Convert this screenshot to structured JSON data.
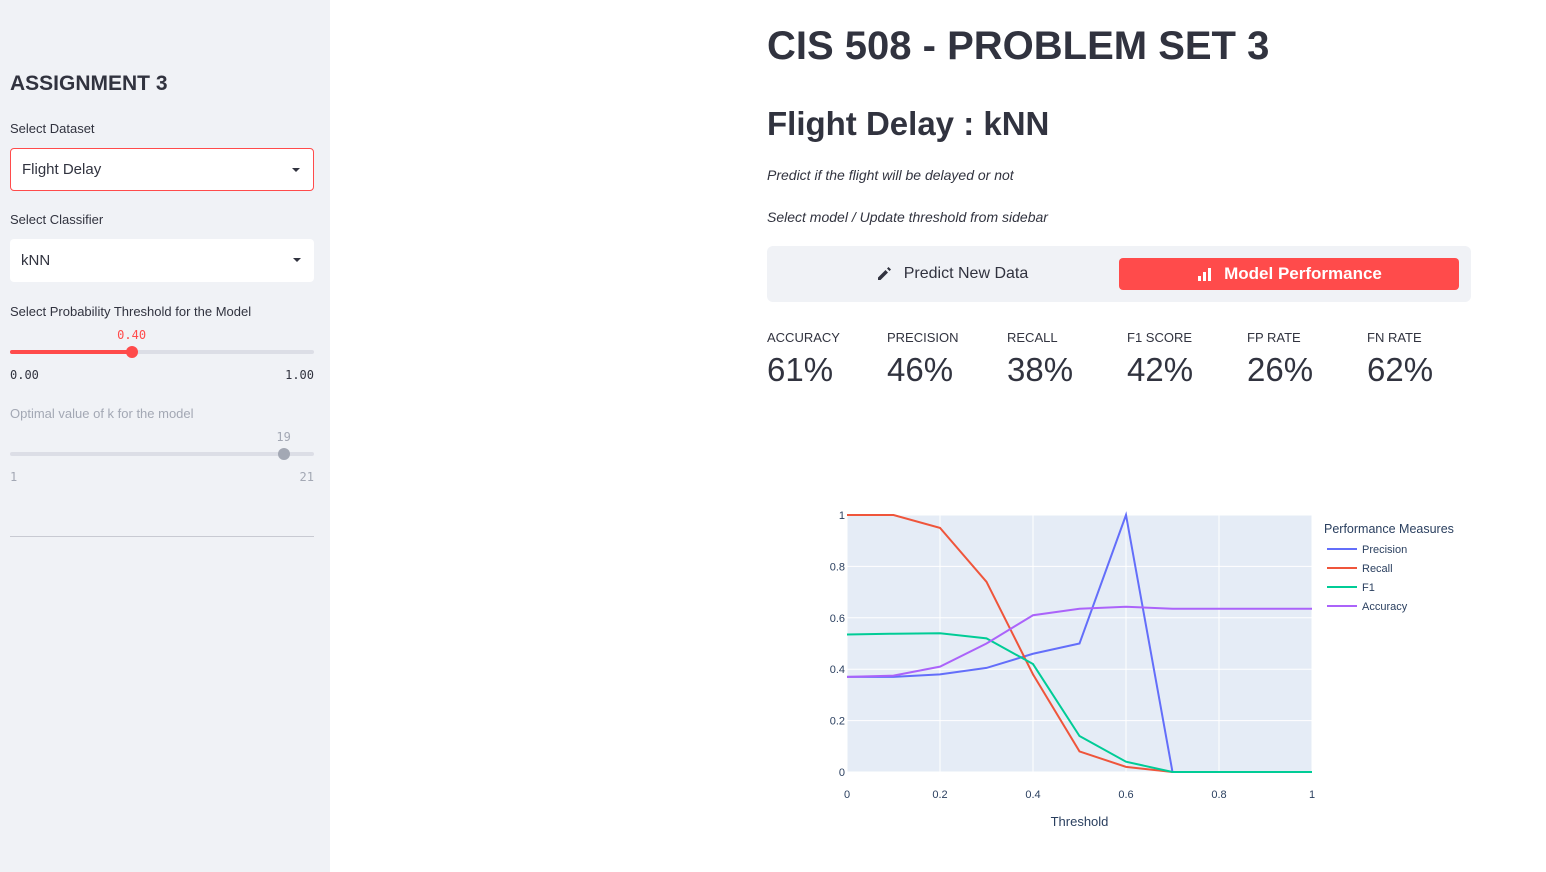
{
  "sidebar": {
    "heading": "ASSIGNMENT 3",
    "dataset_label": "Select Dataset",
    "dataset_value": "Flight Delay",
    "classifier_label": "Select Classifier",
    "classifier_value": "kNN",
    "threshold_label": "Select Probability Threshold for the Model",
    "threshold_value": 0.4,
    "threshold_value_text": "0.40",
    "threshold_min": "0.00",
    "threshold_max": "1.00",
    "k_label": "Optimal value of k for the model",
    "k_value": 19,
    "k_value_text": "19",
    "k_min": "1",
    "k_max": "21"
  },
  "main": {
    "title": "CIS 508 - PROBLEM SET 3",
    "subtitle": "Flight Delay : kNN",
    "desc1": "Predict if the flight will be delayed or not",
    "desc2": "Select model / Update threshold from sidebar",
    "tabs": [
      {
        "label": "Predict New Data",
        "icon": "pencil-icon",
        "active": false
      },
      {
        "label": "Model Performance",
        "icon": "bar-chart-icon",
        "active": true
      }
    ],
    "metrics": [
      {
        "label": "ACCURACY",
        "value": "61%"
      },
      {
        "label": "PRECISION",
        "value": "46%"
      },
      {
        "label": "RECALL",
        "value": "38%"
      },
      {
        "label": "F1 SCORE",
        "value": "42%"
      },
      {
        "label": "FP RATE",
        "value": "26%"
      },
      {
        "label": "FN RATE",
        "value": "62%"
      }
    ]
  },
  "colors": {
    "accent": "#ff4b4b",
    "sidebar_bg": "#f0f2f6",
    "text": "#31333f"
  },
  "chart_data": {
    "type": "line",
    "title": "",
    "xlabel": "Threshold",
    "ylabel": "",
    "xlim": [
      0,
      1
    ],
    "ylim": [
      0,
      1
    ],
    "x_ticks": [
      "0",
      "0.2",
      "0.4",
      "0.6",
      "0.8",
      "1"
    ],
    "y_ticks": [
      "0",
      "0.2",
      "0.4",
      "0.6",
      "0.8",
      "1"
    ],
    "legend_title": "Performance Measures",
    "legend_position": "right",
    "grid": true,
    "x": [
      0,
      0.1,
      0.2,
      0.3,
      0.4,
      0.5,
      0.6,
      0.7,
      0.8,
      0.9,
      1.0
    ],
    "series": [
      {
        "name": "Precision",
        "color": "#636efa",
        "values": [
          0.37,
          0.37,
          0.38,
          0.405,
          0.46,
          0.5,
          1.0,
          0,
          0,
          0,
          0
        ]
      },
      {
        "name": "Recall",
        "color": "#ef553b",
        "values": [
          1.0,
          1.0,
          0.95,
          0.74,
          0.38,
          0.08,
          0.02,
          0,
          0,
          0,
          0
        ]
      },
      {
        "name": "F1",
        "color": "#00cc96",
        "values": [
          0.535,
          0.538,
          0.54,
          0.52,
          0.42,
          0.14,
          0.04,
          0,
          0,
          0,
          0
        ]
      },
      {
        "name": "Accuracy",
        "color": "#ab63fa",
        "values": [
          0.37,
          0.375,
          0.41,
          0.5,
          0.61,
          0.635,
          0.643,
          0.635,
          0.635,
          0.635,
          0.635
        ]
      }
    ]
  }
}
